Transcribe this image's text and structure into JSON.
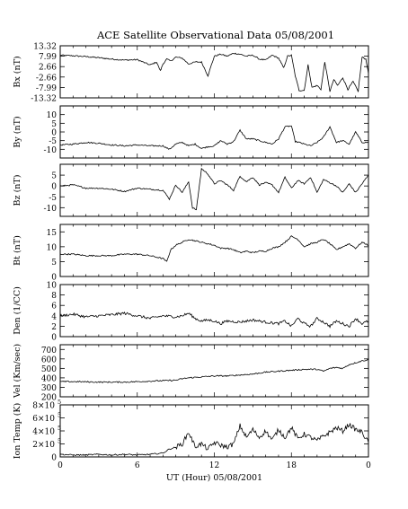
{
  "chart_data": [
    {
      "type": "line",
      "title": "ACE Satellite Observational Data   05/08/2001",
      "ylabel": "Bx (nT)",
      "ylim": [
        -13.32,
        13.32
      ],
      "yticks": [
        "13.32",
        "7.99",
        "2.66",
        "-2.66",
        "-7.99",
        "-13.32"
      ],
      "ytick_values": [
        13.32,
        7.99,
        2.66,
        -2.66,
        -7.99,
        -13.32
      ],
      "series": [
        {
          "x": [
            0,
            1,
            2,
            3,
            4,
            5,
            6,
            7,
            7.5,
            7.8,
            8,
            8.3,
            8.6,
            9,
            9.5,
            10,
            10.5,
            11,
            11.5,
            12,
            12.5,
            13,
            13.5,
            14,
            14.5,
            15,
            15.5,
            16,
            16.5,
            17,
            17.4,
            17.7,
            18,
            18.3,
            18.6,
            19,
            19.3,
            19.6,
            20,
            20.3,
            20.6,
            21,
            21.3,
            21.6,
            22,
            22.4,
            22.8,
            23.2,
            23.5,
            23.8,
            24
          ],
          "y": [
            8.5,
            8.2,
            7.8,
            7.2,
            6.5,
            6.0,
            6.2,
            3.5,
            5.0,
            0.5,
            4.0,
            6.5,
            5.5,
            7.5,
            7.0,
            4.0,
            5.0,
            5.0,
            -2.0,
            8.0,
            9.0,
            8.0,
            9.5,
            9.0,
            8.0,
            8.5,
            6.5,
            6.0,
            8.5,
            7.0,
            2.0,
            8.0,
            8.5,
            -2.0,
            -9.5,
            -9.5,
            3.5,
            -8.0,
            -7.0,
            -9.0,
            5.0,
            -10.0,
            -4.0,
            -7.0,
            -3.0,
            -9.0,
            -5.0,
            -10.0,
            7.5,
            6.5,
            -1.0
          ]
        }
      ]
    },
    {
      "type": "line",
      "ylabel": "By (nT)",
      "ylim": [
        -15,
        15
      ],
      "yticks": [
        "10",
        "5",
        "0",
        "-5",
        "-10"
      ],
      "ytick_values": [
        10,
        5,
        0,
        -5,
        -10
      ],
      "series": [
        {
          "x": [
            0,
            1,
            2,
            3,
            4,
            5,
            6,
            7,
            8,
            8.5,
            9,
            9.5,
            10,
            10.5,
            11,
            11.5,
            12,
            12.5,
            13,
            13.5,
            14,
            14.5,
            15,
            15.5,
            16,
            16.5,
            17,
            17.5,
            18,
            18.3,
            18.6,
            19,
            19.5,
            20,
            20.5,
            21,
            21.5,
            22,
            22.5,
            23,
            23.5,
            24
          ],
          "y": [
            -7.5,
            -7.0,
            -6.0,
            -6.5,
            -7.5,
            -8.0,
            -7.5,
            -8.0,
            -8.0,
            -10.0,
            -7.0,
            -6.0,
            -8.0,
            -7.0,
            -9.5,
            -8.5,
            -8.0,
            -5.0,
            -7.0,
            -5.5,
            1.0,
            -4.0,
            -4.0,
            -5.0,
            -6.0,
            -7.0,
            -4.0,
            3.0,
            3.5,
            -5.5,
            -6.0,
            -7.0,
            -8.0,
            -6.0,
            -3.0,
            3.0,
            -6.0,
            -5.0,
            -7.0,
            0.0,
            -6.0,
            -6.0
          ]
        }
      ]
    },
    {
      "type": "line",
      "ylabel": "Bz (nT)",
      "ylim": [
        -14,
        10
      ],
      "yticks": [
        "5",
        "0",
        "-5",
        "-10"
      ],
      "ytick_values": [
        5,
        0,
        -5,
        -10
      ],
      "series": [
        {
          "x": [
            0,
            1,
            2,
            3,
            4,
            5,
            6,
            7,
            8,
            8.5,
            9,
            9.5,
            10,
            10.3,
            10.6,
            11,
            11.5,
            12,
            12.5,
            13,
            13.5,
            14,
            14.5,
            15,
            15.5,
            16,
            16.5,
            17,
            17.5,
            18,
            18.5,
            19,
            19.5,
            20,
            20.5,
            21,
            21.5,
            22,
            22.5,
            23,
            23.5,
            24
          ],
          "y": [
            0.0,
            0.5,
            -1.0,
            -1.0,
            -1.5,
            -2.5,
            -1.0,
            -1.5,
            -2.0,
            -6.0,
            0.5,
            -3.0,
            2.0,
            -10.0,
            -11.0,
            8.0,
            5.5,
            1.0,
            2.5,
            0.5,
            -2.0,
            4.5,
            2.0,
            4.0,
            0.5,
            1.5,
            0.5,
            -3.0,
            4.0,
            -1.0,
            2.5,
            1.0,
            4.0,
            -3.0,
            3.0,
            1.5,
            0.0,
            -3.0,
            1.0,
            -3.0,
            1.0,
            5.0
          ]
        }
      ]
    },
    {
      "type": "line",
      "ylabel": "Bt (nT)",
      "ylim": [
        0,
        17.5
      ],
      "yticks": [
        "15",
        "10",
        "5",
        "0"
      ],
      "ytick_values": [
        15,
        10,
        5,
        0
      ],
      "series": [
        {
          "x": [
            0,
            1,
            2,
            3,
            4,
            5,
            6,
            7,
            7.5,
            8,
            8.3,
            8.6,
            9,
            9.5,
            10,
            10.5,
            11,
            11.5,
            12,
            12.5,
            13,
            13.5,
            14,
            14.5,
            15,
            15.5,
            16,
            16.5,
            17,
            17.5,
            18,
            18.5,
            19,
            19.5,
            20,
            20.5,
            21,
            21.5,
            22,
            22.5,
            23,
            23.5,
            24
          ],
          "y": [
            7.5,
            7.5,
            7.0,
            7.0,
            7.0,
            7.5,
            7.5,
            7.0,
            6.5,
            6.0,
            5.0,
            9.0,
            10.5,
            11.5,
            12.5,
            12.0,
            11.5,
            11.0,
            10.5,
            9.5,
            9.5,
            9.0,
            8.0,
            8.5,
            8.0,
            8.5,
            8.5,
            9.5,
            10.0,
            11.5,
            13.5,
            12.5,
            10.0,
            11.0,
            11.5,
            12.5,
            11.0,
            9.0,
            10.0,
            11.0,
            9.5,
            11.5,
            10.5
          ]
        }
      ]
    },
    {
      "type": "line",
      "ylabel": "Den (1/CC)",
      "ylim": [
        0,
        10
      ],
      "yticks": [
        "10",
        "8",
        "6",
        "4",
        "2",
        "0"
      ],
      "ytick_values": [
        10,
        8,
        6,
        4,
        2,
        0
      ],
      "series": [
        {
          "x": [
            0,
            1,
            2,
            3,
            4,
            5,
            6,
            7,
            8,
            9,
            9.5,
            10,
            10.5,
            11,
            11.5,
            12,
            12.5,
            13,
            14,
            15,
            16,
            17,
            17.5,
            18,
            18.5,
            19,
            19.5,
            20,
            20.5,
            21,
            21.5,
            22,
            22.5,
            23,
            23.5,
            24
          ],
          "y": [
            4.0,
            4.3,
            3.8,
            4.0,
            4.2,
            4.5,
            4.0,
            3.5,
            4.0,
            3.8,
            4.0,
            4.5,
            3.5,
            3.0,
            3.2,
            3.0,
            2.5,
            3.0,
            2.8,
            3.2,
            2.8,
            2.5,
            3.0,
            2.0,
            3.5,
            2.5,
            2.0,
            3.5,
            2.8,
            2.0,
            3.0,
            2.5,
            2.0,
            3.5,
            2.5,
            3.0
          ]
        }
      ]
    },
    {
      "type": "line",
      "ylabel": "Vel (Km/sec)",
      "ylim": [
        200,
        750
      ],
      "yticks": [
        "700",
        "600",
        "500",
        "400",
        "300",
        "200"
      ],
      "ytick_values": [
        700,
        600,
        500,
        400,
        300,
        200
      ],
      "series": [
        {
          "x": [
            0,
            1,
            2,
            3,
            4,
            5,
            6,
            7,
            8,
            9,
            9.5,
            10,
            11,
            12,
            13,
            14,
            15,
            16,
            17,
            18,
            19,
            20,
            20.5,
            21,
            21.5,
            22,
            22.5,
            23,
            23.5,
            24
          ],
          "y": [
            360,
            360,
            358,
            355,
            355,
            355,
            360,
            365,
            370,
            375,
            390,
            400,
            410,
            420,
            420,
            430,
            440,
            460,
            470,
            480,
            490,
            490,
            470,
            500,
            510,
            500,
            540,
            560,
            580,
            590
          ]
        }
      ]
    },
    {
      "type": "line",
      "ylabel": "Ion Temp (K)",
      "ylim": [
        0,
        800000
      ],
      "yticks": [
        "8×10",
        "6×10",
        "4×10",
        "2×10",
        "0"
      ],
      "ytick_exponent": "5",
      "ytick_values": [
        800000,
        600000,
        400000,
        200000,
        0
      ],
      "xlabel": "UT (Hour)  05/08/2001",
      "xticks": [
        "0",
        "6",
        "12",
        "18",
        "0"
      ],
      "xtick_values": [
        0,
        6,
        12,
        18,
        24
      ],
      "series": [
        {
          "x": [
            0,
            1,
            2,
            3,
            4,
            5,
            6,
            7,
            8,
            8.5,
            9,
            9.5,
            10,
            10.5,
            11,
            11.5,
            12,
            12.5,
            13,
            13.5,
            14,
            14.5,
            15,
            15.5,
            16,
            16.5,
            17,
            17.5,
            18,
            18.5,
            19,
            19.5,
            20,
            20.5,
            21,
            21.5,
            22,
            22.5,
            23,
            23.5,
            24
          ],
          "y": [
            40000,
            30000,
            30000,
            40000,
            30000,
            40000,
            30000,
            40000,
            60000,
            120000,
            150000,
            200000,
            380000,
            160000,
            200000,
            120000,
            220000,
            180000,
            150000,
            200000,
            480000,
            300000,
            420000,
            300000,
            400000,
            260000,
            420000,
            300000,
            450000,
            280000,
            350000,
            300000,
            250000,
            320000,
            380000,
            450000,
            400000,
            500000,
            420000,
            380000,
            220000
          ]
        }
      ]
    }
  ]
}
